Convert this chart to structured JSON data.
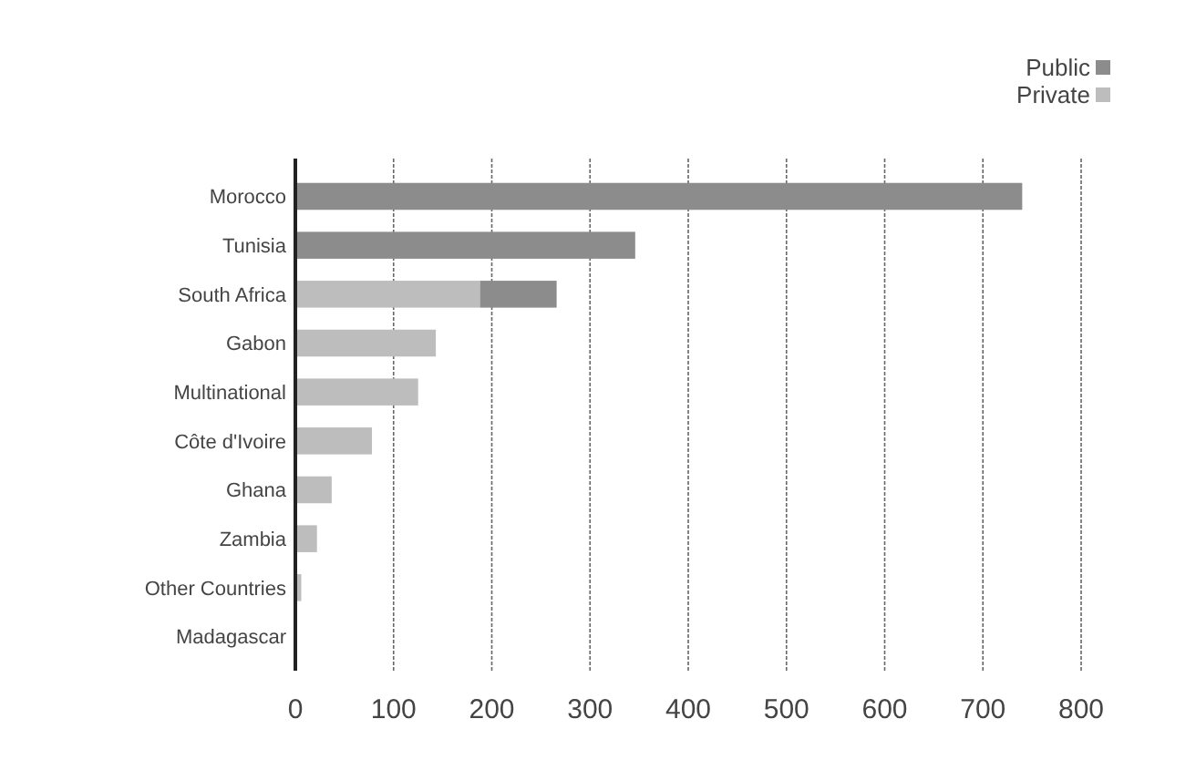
{
  "chart_data": {
    "type": "bar",
    "orientation": "horizontal",
    "stacked": true,
    "categories": [
      "Morocco",
      "Tunisia",
      "South Africa",
      "Gabon",
      "Multinational",
      "Côte d'Ivoire",
      "Ghana",
      "Zambia",
      "Other Countries",
      "Madagascar"
    ],
    "series": [
      {
        "name": "Private",
        "color": "#bdbdbd",
        "values": [
          0,
          0,
          188,
          143,
          125,
          78,
          37,
          22,
          6,
          0
        ]
      },
      {
        "name": "Public",
        "color": "#8c8c8c",
        "values": [
          740,
          346,
          78,
          0,
          0,
          0,
          0,
          0,
          0,
          0
        ]
      }
    ],
    "xlim": [
      0,
      800
    ],
    "xticks": [
      0,
      100,
      200,
      300,
      400,
      500,
      600,
      700,
      800
    ],
    "grid": "x",
    "legend": "top right"
  }
}
